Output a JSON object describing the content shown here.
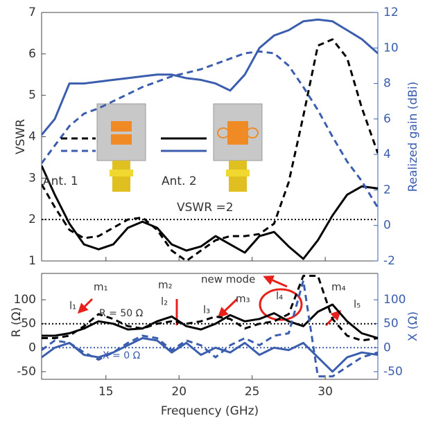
{
  "chart_data": [
    {
      "type": "line",
      "ylabel": "VSWR",
      "y2label": "Realized  gain (dBi)",
      "xlim": [
        10.6,
        33.6
      ],
      "ylim": [
        1,
        7
      ],
      "yticks": [
        1,
        2,
        3,
        4,
        5,
        6,
        7
      ],
      "y2lim": [
        -2,
        12
      ],
      "y2ticks": [
        -2,
        0,
        2,
        4,
        6,
        8,
        10,
        12
      ],
      "x": [
        10.6,
        11.5,
        12.5,
        13.5,
        14.5,
        15.5,
        16.5,
        17.5,
        18.5,
        19.5,
        20.5,
        21.5,
        22.5,
        23.5,
        24.5,
        25.5,
        26.5,
        27.5,
        28.5,
        29.5,
        30.5,
        31.5,
        32.5,
        33.6
      ],
      "series": [
        {
          "name": "Ant. 1",
          "color": "#000000",
          "dash": true,
          "values": [
            2.85,
            2.3,
            1.75,
            1.55,
            1.6,
            1.8,
            2.0,
            2.05,
            1.75,
            1.25,
            1.0,
            1.25,
            1.5,
            1.6,
            1.6,
            1.65,
            1.9,
            2.9,
            4.5,
            6.2,
            6.35,
            5.9,
            4.7,
            3.6
          ]
        },
        {
          "name": "Ant. 2",
          "color": "#000000",
          "dash": false,
          "values": [
            3.3,
            2.6,
            1.9,
            1.4,
            1.28,
            1.4,
            1.8,
            1.95,
            1.8,
            1.4,
            1.25,
            1.35,
            1.6,
            1.4,
            1.2,
            1.6,
            1.7,
            1.35,
            1.05,
            1.5,
            2.1,
            2.6,
            2.8,
            2.75
          ]
        },
        {
          "name": "Ant. 1",
          "color": "#3a5dae",
          "dash": true,
          "axis": "y2",
          "values": [
            3.5,
            4.5,
            5.6,
            6.3,
            6.6,
            7.0,
            7.4,
            7.8,
            8.1,
            8.4,
            8.6,
            8.8,
            9.1,
            9.4,
            9.7,
            9.8,
            9.7,
            9.0,
            7.8,
            6.5,
            5.0,
            3.6,
            2.5,
            1.0
          ]
        },
        {
          "name": "Ant. 2",
          "color": "#3a5dae",
          "dash": false,
          "axis": "y2",
          "values": [
            5.1,
            6.0,
            8.0,
            8.0,
            8.1,
            8.2,
            8.3,
            8.4,
            8.5,
            8.5,
            8.3,
            8.2,
            8.0,
            7.6,
            8.5,
            10.0,
            10.7,
            11.0,
            11.5,
            11.6,
            11.5,
            11.0,
            10.5,
            9.7
          ]
        }
      ],
      "hlines": [
        {
          "value": 2,
          "label": "VSWR =2",
          "color": "#000000"
        }
      ]
    },
    {
      "type": "line",
      "xlabel": "Frequency (GHz)",
      "ylabel": "R (Ω)",
      "y2label": "X (Ω)",
      "xlim": [
        10.6,
        33.6
      ],
      "xticks": [
        15,
        20,
        25,
        30
      ],
      "ylim": [
        -66,
        155
      ],
      "yticks": [
        -50,
        0,
        50,
        100
      ],
      "y2lim": [
        -66,
        155
      ],
      "y2ticks": [
        -50,
        0,
        50,
        100
      ],
      "x": [
        10.6,
        11.5,
        12.5,
        13.5,
        14.5,
        15.5,
        16.5,
        17.5,
        18.5,
        19.5,
        20.5,
        21.5,
        22.5,
        23.5,
        24.5,
        25.5,
        26.5,
        27.5,
        28.5,
        29.5,
        30.5,
        31.5,
        32.5,
        33.6
      ],
      "series": [
        {
          "color": "#000000",
          "dash": true,
          "values": [
            20,
            20,
            25,
            45,
            70,
            60,
            45,
            40,
            50,
            55,
            50,
            55,
            65,
            60,
            40,
            50,
            55,
            70,
            150,
            150,
            60,
            25,
            15,
            20
          ]
        },
        {
          "color": "#000000",
          "dash": false,
          "values": [
            25,
            25,
            30,
            40,
            55,
            50,
            38,
            40,
            55,
            65,
            45,
            38,
            50,
            68,
            55,
            60,
            72,
            55,
            45,
            75,
            90,
            55,
            30,
            20
          ]
        },
        {
          "color": "#3a5dae",
          "dash": true,
          "axis": "y2",
          "values": [
            -5,
            15,
            10,
            -10,
            -25,
            -10,
            10,
            25,
            20,
            -5,
            15,
            5,
            -20,
            5,
            20,
            5,
            25,
            30,
            140,
            -60,
            -60,
            -40,
            -20,
            -10
          ]
        },
        {
          "color": "#3a5dae",
          "dash": false,
          "axis": "y2",
          "values": [
            -20,
            0,
            10,
            -15,
            -20,
            -10,
            5,
            20,
            15,
            -10,
            10,
            -15,
            0,
            -10,
            10,
            -15,
            0,
            -5,
            10,
            -20,
            -50,
            -20,
            -10,
            -15
          ]
        }
      ],
      "hlines": [
        {
          "value": 50,
          "label": "R = 50 Ω",
          "color": "#000000"
        },
        {
          "value": 0,
          "label": "X = 0 Ω",
          "color": "#3a5dae",
          "axis": "y2"
        }
      ],
      "annotations": [
        "m₁",
        "l₁",
        "m₂",
        "l₂",
        "l₃",
        "m₃",
        "new mode",
        "l₄",
        "m₄",
        "l₅"
      ]
    }
  ]
}
